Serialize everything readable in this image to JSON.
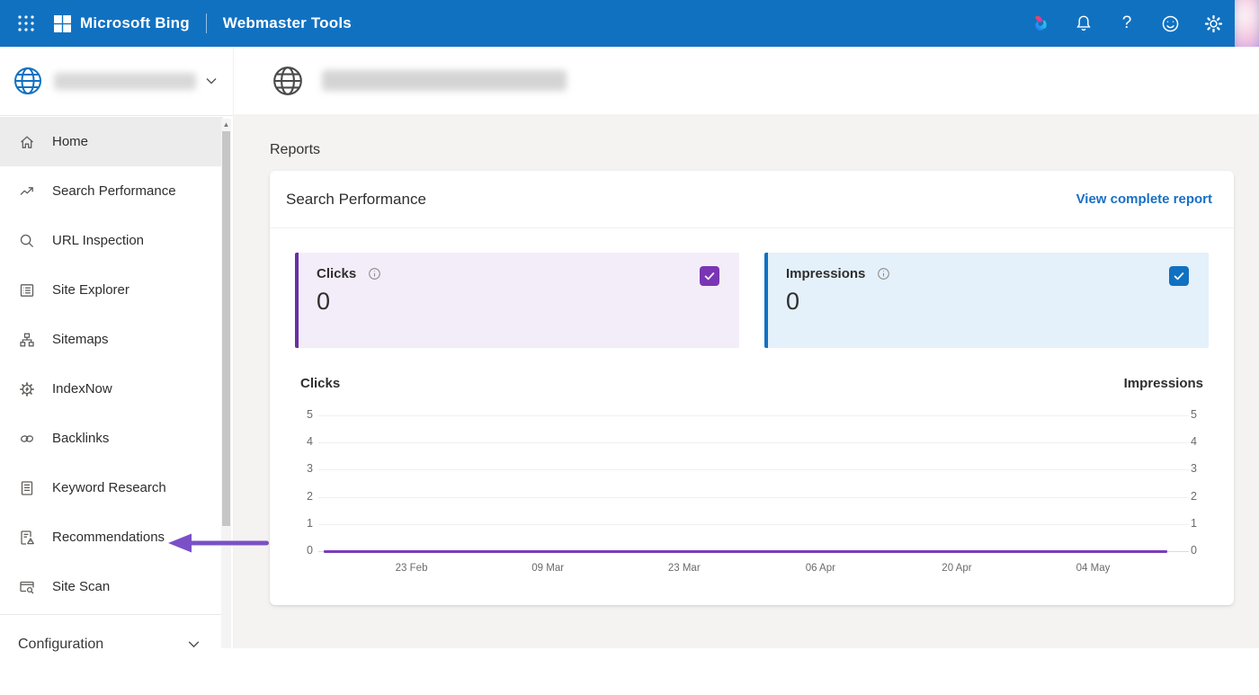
{
  "topbar": {
    "brand": "Microsoft Bing",
    "product": "Webmaster Tools"
  },
  "sidebar": {
    "site_selector": {
      "icon": "globe-icon",
      "site_name": ""
    },
    "items": [
      {
        "label": "Home",
        "icon": "home-icon",
        "active": true
      },
      {
        "label": "Search Performance",
        "icon": "trending-up-icon"
      },
      {
        "label": "URL Inspection",
        "icon": "magnifier-icon"
      },
      {
        "label": "Site Explorer",
        "icon": "site-explorer-icon"
      },
      {
        "label": "Sitemaps",
        "icon": "sitemap-icon"
      },
      {
        "label": "IndexNow",
        "icon": "indexnow-gear-icon"
      },
      {
        "label": "Backlinks",
        "icon": "backlinks-icon"
      },
      {
        "label": "Keyword Research",
        "icon": "keyword-research-icon"
      },
      {
        "label": "Recommendations",
        "icon": "recommendations-icon"
      },
      {
        "label": "Site Scan",
        "icon": "site-scan-icon"
      }
    ],
    "sections": [
      {
        "label": "Configuration",
        "collapsed": true
      }
    ]
  },
  "main": {
    "site_header": {
      "icon": "globe-icon",
      "url": ""
    },
    "page_title": "Reports",
    "card": {
      "title": "Search Performance",
      "link_label": "View complete report",
      "metrics": [
        {
          "label": "Clicks",
          "value": "0",
          "checked": true,
          "accent": "#6b2fa0",
          "checkbox_color": "#7a35b5"
        },
        {
          "label": "Impressions",
          "value": "0",
          "checked": true,
          "accent": "#1171c1",
          "checkbox_color": "#1171c1"
        }
      ]
    }
  },
  "chart_data": {
    "type": "line",
    "title": "",
    "left_axis_label": "Clicks",
    "right_axis_label": "Impressions",
    "x_ticks": [
      "23 Feb",
      "09 Mar",
      "23 Mar",
      "06 Apr",
      "20 Apr",
      "04 May"
    ],
    "y_ticks": [
      0,
      1,
      2,
      3,
      4,
      5
    ],
    "ylim": [
      0,
      5
    ],
    "grid": true,
    "legend_position": "none",
    "dual_axis": true,
    "series": [
      {
        "name": "Impressions",
        "color": "#1171c1",
        "values": [
          0,
          0,
          0,
          0,
          0,
          0
        ]
      },
      {
        "name": "Clicks",
        "color": "#7a3db8",
        "values": [
          0,
          0,
          0,
          0,
          0,
          0
        ]
      }
    ]
  },
  "annotation": {
    "type": "arrow",
    "color": "#7b50c7",
    "points_to": "Recommendations"
  }
}
